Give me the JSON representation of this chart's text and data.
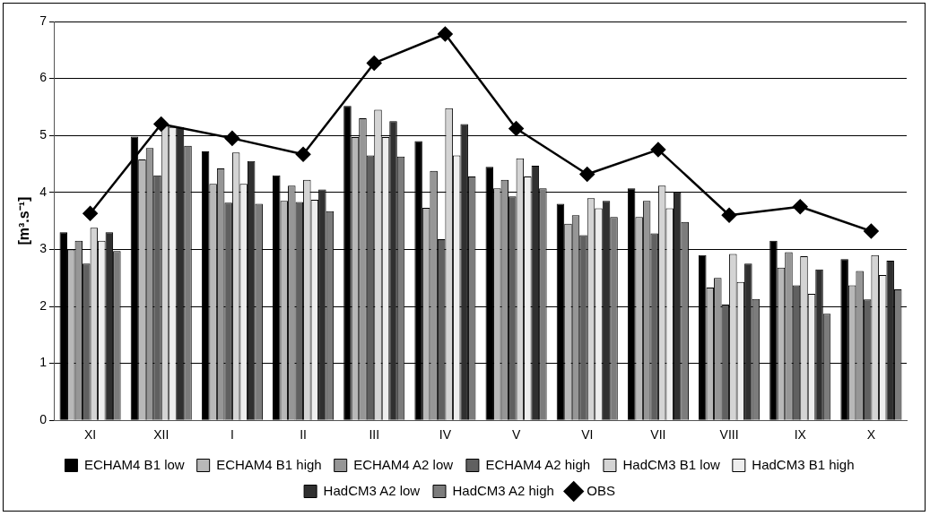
{
  "chart_data": {
    "type": "bar",
    "ylabel": "[m³.s⁻¹]",
    "categories": [
      "XI",
      "XII",
      "I",
      "II",
      "III",
      "IV",
      "V",
      "VI",
      "VII",
      "VIII",
      "IX",
      "X"
    ],
    "ylim": [
      0,
      7
    ],
    "yticks": [
      0,
      1,
      2,
      3,
      4,
      5,
      6,
      7
    ],
    "grid": "y",
    "legend": "bottom",
    "series": [
      {
        "name": "ECHAM4 B1 low",
        "color": "#000000",
        "values": [
          3.3,
          4.98,
          4.72,
          4.3,
          5.52,
          4.9,
          4.45,
          3.8,
          4.07,
          2.9,
          3.15,
          2.83
        ]
      },
      {
        "name": "ECHAM4 B1 high",
        "color": "#b8b8b8",
        "values": [
          3.0,
          4.58,
          4.15,
          3.85,
          4.97,
          3.73,
          4.07,
          3.45,
          3.57,
          2.33,
          2.68,
          2.37
        ]
      },
      {
        "name": "ECHAM4 A2 low",
        "color": "#969696",
        "values": [
          3.15,
          4.78,
          4.42,
          4.12,
          5.3,
          4.38,
          4.22,
          3.6,
          3.85,
          2.5,
          2.95,
          2.62
        ]
      },
      {
        "name": "ECHAM4 A2 high",
        "color": "#606060",
        "values": [
          2.75,
          4.3,
          3.82,
          3.83,
          4.65,
          3.18,
          3.93,
          3.25,
          3.28,
          2.03,
          2.37,
          2.12
        ]
      },
      {
        "name": "HadCM3 B1 low",
        "color": "#d4d4d4",
        "values": [
          3.38,
          5.18,
          4.7,
          4.22,
          5.45,
          5.48,
          4.6,
          3.9,
          4.12,
          2.92,
          2.88,
          2.9
        ]
      },
      {
        "name": "HadCM3 B1 high",
        "color": "#eeeeee",
        "values": [
          3.15,
          5.15,
          4.15,
          3.87,
          4.97,
          4.65,
          4.28,
          3.72,
          3.72,
          2.43,
          2.22,
          2.55
        ]
      },
      {
        "name": "HadCM3 A2 low",
        "color": "#303030",
        "values": [
          3.3,
          5.15,
          4.55,
          4.05,
          5.25,
          5.2,
          4.47,
          3.85,
          4.0,
          2.75,
          2.65,
          2.8
        ]
      },
      {
        "name": "HadCM3 A2 high",
        "color": "#7c7c7c",
        "values": [
          2.97,
          4.82,
          3.8,
          3.67,
          4.63,
          4.28,
          4.07,
          3.57,
          3.48,
          2.13,
          1.87,
          2.3
        ]
      },
      {
        "name": "OBS",
        "type": "line",
        "color": "#000000",
        "marker": "diamond",
        "line_style": "solid",
        "values": [
          3.63,
          5.2,
          4.95,
          4.67,
          6.27,
          6.78,
          5.12,
          4.32,
          4.75,
          3.6,
          3.75,
          3.32
        ]
      }
    ]
  }
}
